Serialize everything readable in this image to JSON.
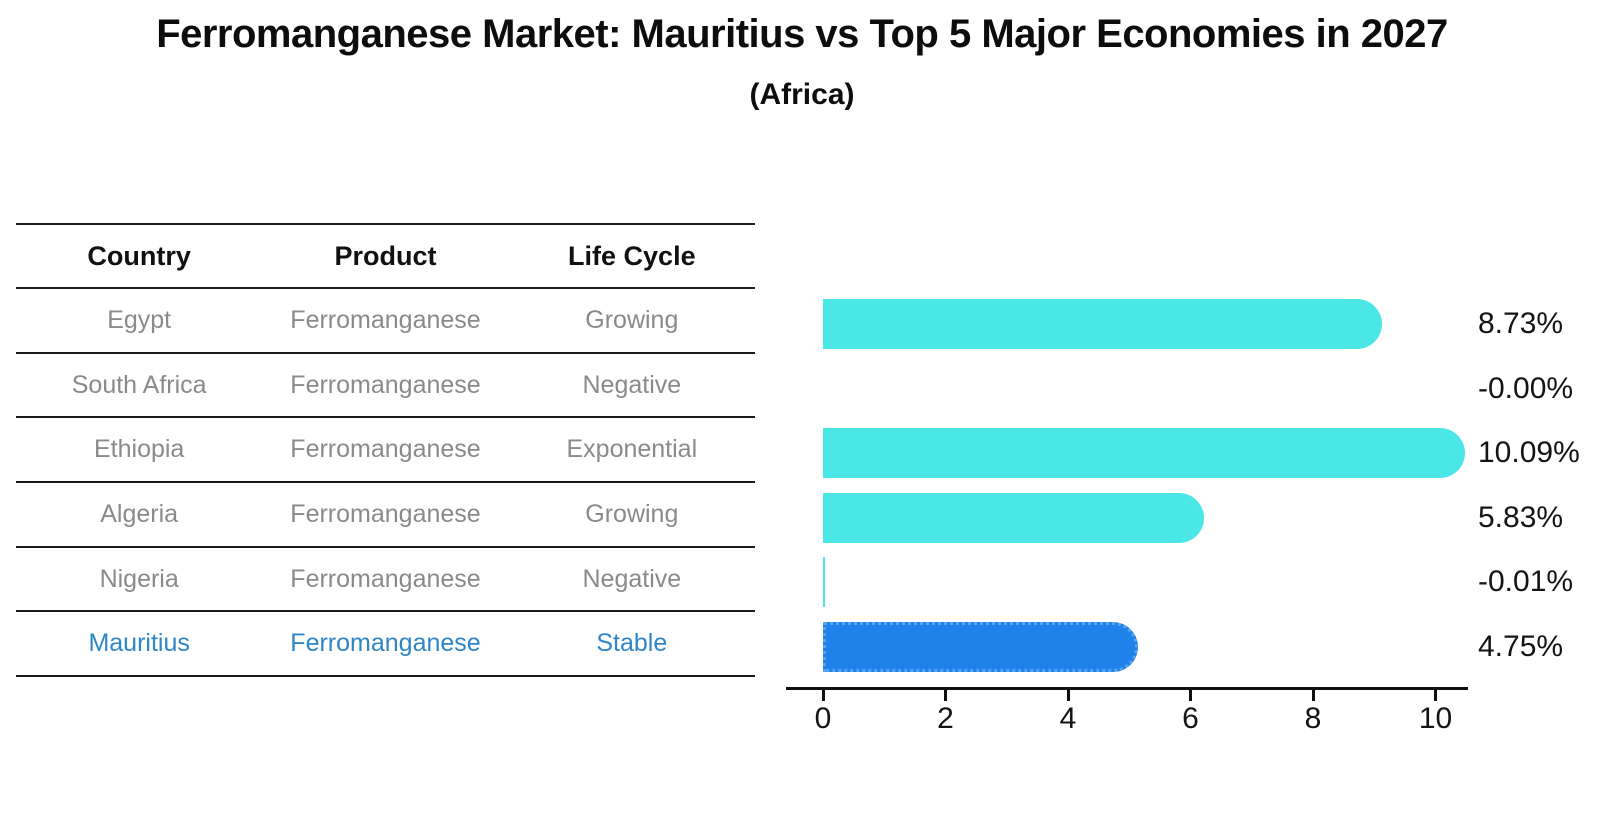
{
  "title": "Ferromanganese Market: Mauritius vs Top 5 Major Economies in 2027",
  "subtitle": "(Africa)",
  "table": {
    "headers": [
      "Country",
      "Product",
      "Life Cycle"
    ],
    "rows": [
      {
        "country": "Egypt",
        "product": "Ferromanganese",
        "life_cycle": "Growing"
      },
      {
        "country": "South Africa",
        "product": "Ferromanganese",
        "life_cycle": "Negative"
      },
      {
        "country": "Ethiopia",
        "product": "Ferromanganese",
        "life_cycle": "Exponential"
      },
      {
        "country": "Algeria",
        "product": "Ferromanganese",
        "life_cycle": "Growing"
      },
      {
        "country": "Nigeria",
        "product": "Ferromanganese",
        "life_cycle": "Negative"
      },
      {
        "country": "Mauritius",
        "product": "Ferromanganese",
        "life_cycle": "Stable"
      }
    ],
    "highlight_row": "Mauritius"
  },
  "chart_data": {
    "type": "bar",
    "orientation": "horizontal",
    "categories": [
      "Egypt",
      "South Africa",
      "Ethiopia",
      "Algeria",
      "Nigeria",
      "Mauritius"
    ],
    "values": [
      8.73,
      -0.0,
      10.09,
      5.83,
      -0.01,
      4.75
    ],
    "value_labels": [
      "8.73%",
      "-0.00%",
      "10.09%",
      "5.83%",
      "-0.01%",
      "4.75%"
    ],
    "title": "Ferromanganese Market: Mauritius vs Top 5 Major Economies in 2027 (Africa)",
    "xlabel": "",
    "ylabel": "",
    "xticks": [
      0,
      2,
      4,
      6,
      8,
      10
    ],
    "xlim": [
      0,
      10.55
    ],
    "grid": false,
    "legend": "none",
    "bar_color": "#4be6e6",
    "highlight_color": "#1f82ea",
    "highlight_index": 5
  },
  "colors": {
    "bar_cyan": "#4be6e6",
    "bar_blue": "#1f82ea",
    "highlight_text": "#2e86c8",
    "table_text": "#8a8a8a",
    "heading_text": "#111111",
    "axis": "#101010"
  }
}
